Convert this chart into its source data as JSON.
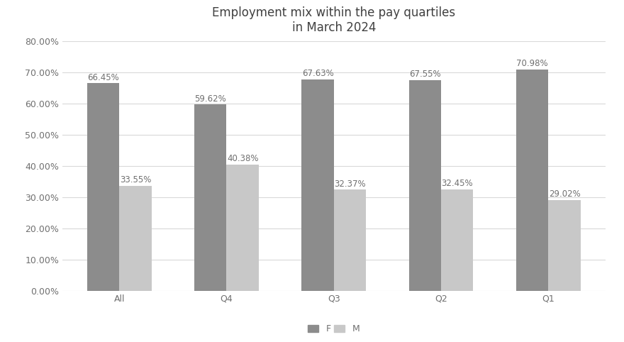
{
  "title": "Employment mix within the pay quartiles\nin March 2024",
  "categories": [
    "All",
    "Q4",
    "Q3",
    "Q2",
    "Q1"
  ],
  "f_values": [
    66.45,
    59.62,
    67.63,
    67.55,
    70.98
  ],
  "m_values": [
    33.55,
    40.38,
    32.37,
    32.45,
    29.02
  ],
  "f_color": "#8c8c8c",
  "m_color": "#c8c8c8",
  "ylim": [
    0,
    80
  ],
  "yticks": [
    0,
    10,
    20,
    30,
    40,
    50,
    60,
    70,
    80
  ],
  "ytick_labels": [
    "0.00%",
    "10.00%",
    "20.00%",
    "30.00%",
    "40.00%",
    "50.00%",
    "60.00%",
    "70.00%",
    "80.00%"
  ],
  "bar_width": 0.3,
  "title_fontsize": 12,
  "tick_fontsize": 9,
  "label_fontsize": 8.5,
  "legend_label_f": "F",
  "legend_label_m": "M",
  "background_color": "#ffffff",
  "grid_color": "#d9d9d9",
  "text_color": "#707070"
}
